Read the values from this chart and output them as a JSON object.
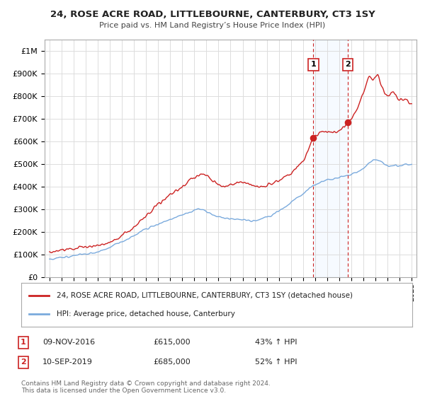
{
  "title": "24, ROSE ACRE ROAD, LITTLEBOURNE, CANTERBURY, CT3 1SY",
  "subtitle": "Price paid vs. HM Land Registry’s House Price Index (HPI)",
  "ylim": [
    0,
    1050000
  ],
  "yticks": [
    0,
    100000,
    200000,
    300000,
    400000,
    500000,
    600000,
    700000,
    800000,
    900000,
    1000000
  ],
  "ytick_labels": [
    "£0",
    "£100K",
    "£200K",
    "£300K",
    "£400K",
    "£500K",
    "£600K",
    "£700K",
    "£800K",
    "£900K",
    "£1M"
  ],
  "hpi_color": "#7aaadd",
  "price_color": "#cc2222",
  "transaction1_date": 2016.86,
  "transaction1_price": 615000,
  "transaction1_label": "1",
  "transaction2_date": 2019.71,
  "transaction2_price": 685000,
  "transaction2_label": "2",
  "vline_color": "#cc2222",
  "legend_label_price": "24, ROSE ACRE ROAD, LITTLEBOURNE, CANTERBURY, CT3 1SY (detached house)",
  "legend_label_hpi": "HPI: Average price, detached house, Canterbury",
  "footer": "Contains HM Land Registry data © Crown copyright and database right 2024.\nThis data is licensed under the Open Government Licence v3.0.",
  "background_color": "#ffffff",
  "grid_color": "#dddddd",
  "shaded_color": "#ddeeff",
  "xlim_left": 1994.6,
  "xlim_right": 2025.4
}
